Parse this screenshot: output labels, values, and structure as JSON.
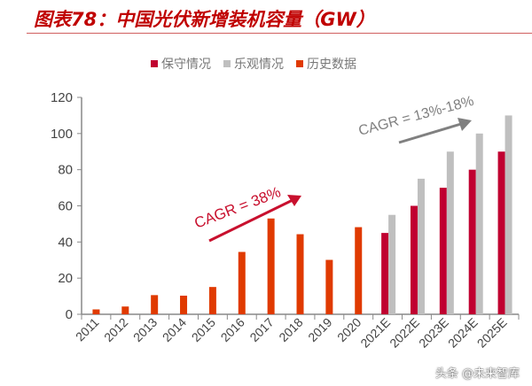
{
  "title": "图表78：中国光伏新增装机容量（GW）",
  "watermark": "头条 @未来智库",
  "chart_data": {
    "type": "bar",
    "title": "图表78：中国光伏新增装机容量（GW）",
    "categories": [
      "2011",
      "2012",
      "2013",
      "2014",
      "2015",
      "2016",
      "2017",
      "2018",
      "2019",
      "2020",
      "2021E",
      "2022E",
      "2023E",
      "2024E",
      "2025E"
    ],
    "series": [
      {
        "name": "保守情况",
        "color": "#C00030",
        "values": [
          null,
          null,
          null,
          null,
          null,
          null,
          null,
          null,
          null,
          null,
          45,
          60,
          70,
          80,
          90
        ]
      },
      {
        "name": "乐观情况",
        "color": "#BFBFBF",
        "values": [
          null,
          null,
          null,
          null,
          null,
          null,
          null,
          null,
          null,
          null,
          55,
          75,
          90,
          100,
          110
        ]
      },
      {
        "name": "历史数据",
        "color": "#E03A00",
        "values": [
          2.7,
          4.3,
          10.6,
          10.3,
          15.1,
          34.5,
          53,
          44.3,
          30.1,
          48.2,
          null,
          null,
          null,
          null,
          null
        ]
      }
    ],
    "ylim": [
      0,
      120
    ],
    "yticks": [
      0,
      20,
      40,
      60,
      80,
      100,
      120
    ],
    "legend_position": "top",
    "grid": false,
    "annotations": [
      {
        "text": "CAGR = 38%",
        "color": "#C8102E"
      },
      {
        "text": "CAGR = 13%-18%",
        "color": "#808080"
      }
    ]
  }
}
